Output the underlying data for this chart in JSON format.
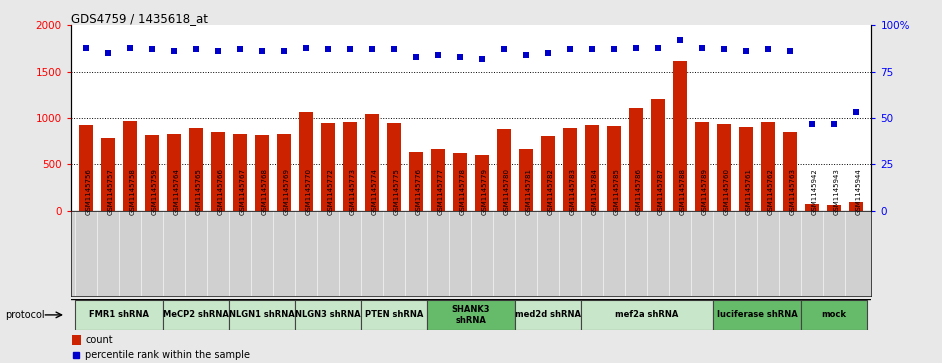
{
  "title": "GDS4759 / 1435618_at",
  "samples": [
    "GSM1145756",
    "GSM1145757",
    "GSM1145758",
    "GSM1145759",
    "GSM1145764",
    "GSM1145765",
    "GSM1145766",
    "GSM1145767",
    "GSM1145768",
    "GSM1145769",
    "GSM1145770",
    "GSM1145772",
    "GSM1145773",
    "GSM1145774",
    "GSM1145775",
    "GSM1145776",
    "GSM1145777",
    "GSM1145778",
    "GSM1145779",
    "GSM1145780",
    "GSM1145781",
    "GSM1145782",
    "GSM1145783",
    "GSM1145784",
    "GSM1145785",
    "GSM1145786",
    "GSM1145787",
    "GSM1145788",
    "GSM1145789",
    "GSM1145760",
    "GSM1145761",
    "GSM1145762",
    "GSM1145763",
    "GSM1145942",
    "GSM1145943",
    "GSM1145944"
  ],
  "counts": [
    920,
    780,
    970,
    820,
    830,
    890,
    850,
    830,
    820,
    830,
    1060,
    950,
    960,
    1040,
    950,
    630,
    670,
    620,
    600,
    880,
    660,
    800,
    890,
    920,
    910,
    1110,
    1210,
    1620,
    960,
    940,
    900,
    960,
    850,
    70,
    60,
    90
  ],
  "percentiles": [
    88,
    85,
    88,
    87,
    86,
    87,
    86,
    87,
    86,
    86,
    88,
    87,
    87,
    87,
    87,
    83,
    84,
    83,
    82,
    87,
    84,
    85,
    87,
    87,
    87,
    88,
    88,
    92,
    88,
    87,
    86,
    87,
    86,
    47,
    47,
    53
  ],
  "protocols": [
    {
      "label": "FMR1 shRNA",
      "start": 0,
      "end": 4,
      "color": "#c8e6c9"
    },
    {
      "label": "MeCP2 shRNA",
      "start": 4,
      "end": 7,
      "color": "#c8e6c9"
    },
    {
      "label": "NLGN1 shRNA",
      "start": 7,
      "end": 10,
      "color": "#c8e6c9"
    },
    {
      "label": "NLGN3 shRNA",
      "start": 10,
      "end": 13,
      "color": "#c8e6c9"
    },
    {
      "label": "PTEN shRNA",
      "start": 13,
      "end": 16,
      "color": "#c8e6c9"
    },
    {
      "label": "SHANK3\nshRNA",
      "start": 16,
      "end": 20,
      "color": "#66bb6a"
    },
    {
      "label": "med2d shRNA",
      "start": 20,
      "end": 23,
      "color": "#c8e6c9"
    },
    {
      "label": "mef2a shRNA",
      "start": 23,
      "end": 29,
      "color": "#c8e6c9"
    },
    {
      "label": "luciferase shRNA",
      "start": 29,
      "end": 33,
      "color": "#66bb6a"
    },
    {
      "label": "mock",
      "start": 33,
      "end": 36,
      "color": "#66bb6a"
    }
  ],
  "bar_color": "#cc2200",
  "dot_color": "#0000cc",
  "ylim_left": [
    0,
    2000
  ],
  "ylim_right": [
    0,
    100
  ],
  "yticks_left": [
    0,
    500,
    1000,
    1500,
    2000
  ],
  "yticks_right": [
    0,
    25,
    50,
    75,
    100
  ],
  "ytick_labels_left": [
    "0",
    "500",
    "1000",
    "1500",
    "2000"
  ],
  "ytick_labels_right": [
    "0",
    "25",
    "50",
    "75",
    "100%"
  ],
  "bg_color": "#e8e8e8",
  "plot_bg": "#ffffff",
  "xtick_bg": "#d0d0d0",
  "grid_color": "#000000",
  "grid_style": ":"
}
